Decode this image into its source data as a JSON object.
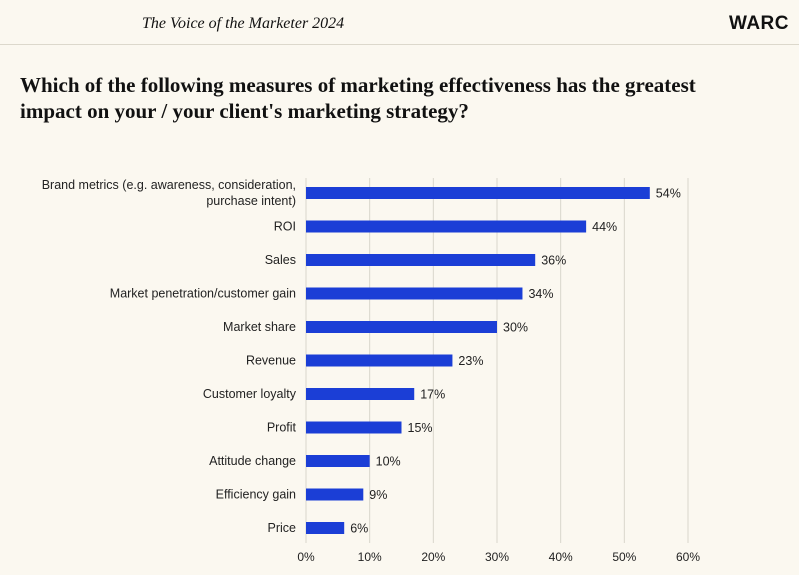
{
  "header": {
    "publication": "The Voice of the Marketer 2024",
    "logo": "WARC"
  },
  "question": "Which of the following measures of marketing effectiveness has the greatest impact on your / your client's marketing strategy?",
  "colors": {
    "bar": "#1b3ed6",
    "background": "#fbf8f0",
    "grid": "#d9d6cc"
  },
  "chart_data": {
    "type": "bar",
    "orientation": "horizontal",
    "categories": [
      [
        "Brand metrics (e.g. awareness, consideration,",
        "purchase intent)"
      ],
      [
        "ROI"
      ],
      [
        "Sales"
      ],
      [
        "Market penetration/customer gain"
      ],
      [
        "Market share"
      ],
      [
        "Revenue"
      ],
      [
        "Customer loyalty"
      ],
      [
        "Profit"
      ],
      [
        "Attitude change"
      ],
      [
        "Efficiency gain"
      ],
      [
        "Price"
      ]
    ],
    "values": [
      54,
      44,
      36,
      34,
      30,
      23,
      17,
      15,
      10,
      9,
      6
    ],
    "value_labels": [
      "54%",
      "44%",
      "36%",
      "34%",
      "30%",
      "23%",
      "17%",
      "15%",
      "10%",
      "9%",
      "6%"
    ],
    "xlim": [
      0,
      60
    ],
    "xticks": [
      0,
      10,
      20,
      30,
      40,
      50,
      60
    ],
    "xtick_labels": [
      "0%",
      "10%",
      "20%",
      "30%",
      "40%",
      "50%",
      "60%"
    ],
    "grid": "vertical"
  }
}
